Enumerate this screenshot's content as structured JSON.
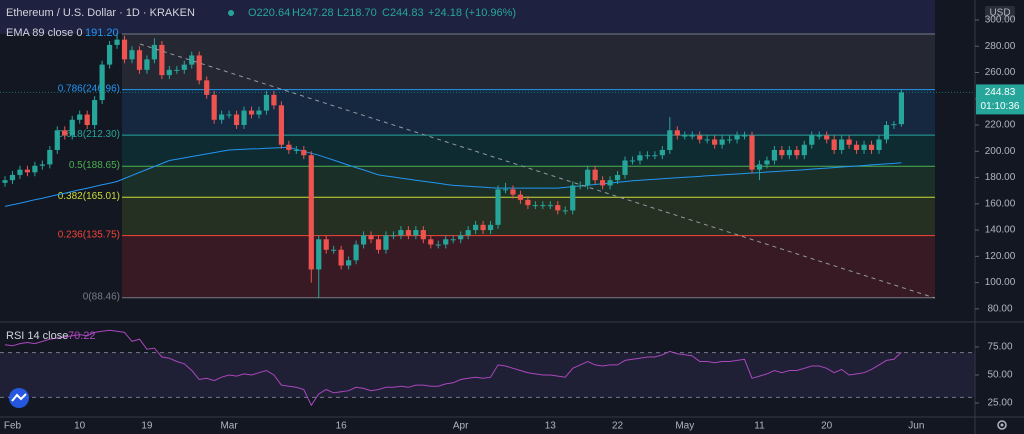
{
  "header": {
    "symbol": "Ethereum / U.S. Dollar · 1D · KRAKEN",
    "open": "O220.64",
    "high": "H247.28",
    "low": "L218.70",
    "close": "C244.83",
    "change": "+24.18 (+10.96%)",
    "currency": "USD",
    "countdown": "01:10:36"
  },
  "chart_data": [
    {
      "type": "candlestick",
      "up_color": "#26a69a",
      "down_color": "#ef5350",
      "categories": [
        null,
        "Feb",
        null,
        null,
        null,
        null,
        null,
        null,
        null,
        null,
        "10",
        null,
        null,
        null,
        null,
        null,
        null,
        null,
        null,
        "19",
        null,
        null,
        null,
        null,
        null,
        null,
        null,
        null,
        null,
        null,
        "Mar",
        null,
        null,
        null,
        null,
        null,
        null,
        null,
        null,
        null,
        null,
        null,
        null,
        null,
        null,
        "16",
        null,
        null,
        null,
        null,
        null,
        null,
        null,
        null,
        null,
        null,
        null,
        null,
        null,
        null,
        null,
        "Apr",
        null,
        null,
        null,
        null,
        null,
        null,
        null,
        null,
        null,
        null,
        null,
        "13",
        null,
        null,
        null,
        null,
        null,
        null,
        null,
        null,
        "22",
        null,
        null,
        null,
        null,
        null,
        null,
        null,
        null,
        "May",
        null,
        null,
        null,
        null,
        null,
        null,
        null,
        null,
        null,
        "11",
        null,
        null,
        null,
        null,
        null,
        null,
        null,
        null,
        "20",
        null,
        null,
        null,
        null,
        null,
        null,
        null,
        null,
        null,
        null,
        null,
        "Jun"
      ],
      "ohlc": [
        [
          176,
          181,
          173,
          178
        ],
        [
          178,
          185,
          175,
          182
        ],
        [
          182,
          189,
          179,
          186
        ],
        [
          186,
          189,
          181,
          184
        ],
        [
          184,
          192,
          181,
          189
        ],
        [
          189,
          193,
          186,
          190
        ],
        [
          190,
          204,
          187,
          201
        ],
        [
          201,
          219,
          198,
          216
        ],
        [
          216,
          219,
          209,
          212
        ],
        [
          212,
          227,
          209,
          224
        ],
        [
          224,
          231,
          221,
          228
        ],
        [
          228,
          231,
          217,
          220
        ],
        [
          220,
          242,
          217,
          239
        ],
        [
          239,
          269,
          236,
          266
        ],
        [
          266,
          284,
          263,
          281
        ],
        [
          281,
          290,
          278,
          285
        ],
        [
          285,
          288,
          267,
          270
        ],
        [
          270,
          280,
          267,
          277
        ],
        [
          277,
          280,
          259,
          262
        ],
        [
          262,
          273,
          259,
          270
        ],
        [
          270,
          286,
          267,
          281
        ],
        [
          281,
          284,
          255,
          258
        ],
        [
          258,
          265,
          255,
          262
        ],
        [
          262,
          265,
          259,
          262
        ],
        [
          262,
          269,
          259,
          266
        ],
        [
          266,
          276,
          263,
          273
        ],
        [
          273,
          276,
          251,
          254
        ],
        [
          254,
          257,
          240,
          243
        ],
        [
          243,
          246,
          221,
          224
        ],
        [
          224,
          231,
          221,
          228
        ],
        [
          228,
          231,
          225,
          228
        ],
        [
          228,
          231,
          217,
          220
        ],
        [
          220,
          234,
          217,
          231
        ],
        [
          231,
          234,
          225,
          228
        ],
        [
          228,
          234,
          225,
          231
        ],
        [
          231,
          246,
          228,
          243
        ],
        [
          243,
          246,
          232,
          235
        ],
        [
          235,
          238,
          202,
          205
        ],
        [
          205,
          208,
          198,
          201
        ],
        [
          201,
          204,
          198,
          201
        ],
        [
          201,
          204,
          194,
          197
        ],
        [
          197,
          200,
          100,
          110
        ],
        [
          110,
          136,
          88.46,
          133
        ],
        [
          133,
          136,
          122,
          125
        ],
        [
          125,
          128,
          122,
          125
        ],
        [
          125,
          128,
          110,
          113
        ],
        [
          113,
          120,
          110,
          117
        ],
        [
          117,
          132,
          114,
          129
        ],
        [
          129,
          139,
          126,
          136
        ],
        [
          136,
          139,
          130,
          133
        ],
        [
          133,
          136,
          122,
          125
        ],
        [
          125,
          139,
          122,
          136
        ],
        [
          136,
          139,
          133,
          136
        ],
        [
          136,
          143,
          133,
          140
        ],
        [
          140,
          143,
          133,
          136
        ],
        [
          136,
          143,
          133,
          140
        ],
        [
          140,
          143,
          130,
          133
        ],
        [
          133,
          136,
          126,
          129
        ],
        [
          129,
          132,
          126,
          129
        ],
        [
          129,
          136,
          126,
          133
        ],
        [
          133,
          136,
          130,
          133
        ],
        [
          133,
          139,
          130,
          136
        ],
        [
          136,
          143,
          133,
          140
        ],
        [
          140,
          147,
          137,
          144
        ],
        [
          144,
          147,
          137,
          140
        ],
        [
          140,
          147,
          137,
          144
        ],
        [
          144,
          174,
          141,
          171
        ],
        [
          171,
          176,
          168,
          171
        ],
        [
          171,
          174,
          164,
          167
        ],
        [
          167,
          170,
          160,
          163
        ],
        [
          163,
          166,
          156,
          159
        ],
        [
          159,
          162,
          156,
          159
        ],
        [
          159,
          162,
          156,
          159
        ],
        [
          159,
          162,
          156,
          159
        ],
        [
          159,
          162,
          152,
          155
        ],
        [
          155,
          158,
          152,
          155
        ],
        [
          155,
          177,
          152,
          174
        ],
        [
          174,
          177,
          171,
          174
        ],
        [
          174,
          189,
          171,
          186
        ],
        [
          186,
          189,
          175,
          178
        ],
        [
          178,
          181,
          171,
          174
        ],
        [
          174,
          181,
          171,
          178
        ],
        [
          178,
          185,
          175,
          182
        ],
        [
          182,
          196,
          179,
          193
        ],
        [
          193,
          196,
          190,
          193
        ],
        [
          193,
          200,
          190,
          197
        ],
        [
          197,
          200,
          194,
          197
        ],
        [
          197,
          200,
          194,
          197
        ],
        [
          197,
          204,
          194,
          201
        ],
        [
          201,
          226,
          198,
          216
        ],
        [
          216,
          219,
          209,
          212
        ],
        [
          212,
          215,
          209,
          212
        ],
        [
          212,
          215,
          209,
          212
        ],
        [
          212,
          215,
          206,
          209
        ],
        [
          209,
          212,
          206,
          209
        ],
        [
          209,
          212,
          202,
          205
        ],
        [
          205,
          212,
          202,
          209
        ],
        [
          209,
          212,
          206,
          209
        ],
        [
          209,
          215,
          206,
          212
        ],
        [
          212,
          215,
          209,
          212
        ],
        [
          212,
          215,
          183,
          186
        ],
        [
          186,
          193,
          178,
          190
        ],
        [
          190,
          196,
          187,
          193
        ],
        [
          193,
          204,
          190,
          201
        ],
        [
          201,
          204,
          194,
          197
        ],
        [
          197,
          204,
          194,
          201
        ],
        [
          201,
          204,
          194,
          197
        ],
        [
          197,
          208,
          194,
          205
        ],
        [
          205,
          215,
          202,
          212
        ],
        [
          212,
          215,
          209,
          212
        ],
        [
          212,
          215,
          206,
          209
        ],
        [
          209,
          212,
          198,
          201
        ],
        [
          201,
          212,
          198,
          209
        ],
        [
          209,
          212,
          202,
          205
        ],
        [
          205,
          208,
          198,
          201
        ],
        [
          201,
          208,
          198,
          205
        ],
        [
          205,
          208,
          198,
          201
        ],
        [
          201,
          212,
          198,
          209
        ],
        [
          209,
          223,
          206,
          220
        ],
        [
          220,
          223,
          217,
          220.64
        ],
        [
          220.64,
          247.28,
          218.7,
          244.83
        ],
        null,
        null
      ],
      "series": [
        {
          "name": "EMA 89 close 0",
          "color": "#2196f3",
          "value_label": "191.20",
          "values": [
            158,
            159.3,
            160.5,
            161.8,
            163.1,
            164.3,
            165.6,
            166.9,
            168.1,
            169.4,
            170.7,
            171.9,
            173.2,
            174.5,
            175.7,
            177,
            179.3,
            181.6,
            183.9,
            186.1,
            188.4,
            190.7,
            193,
            194,
            195,
            196,
            197,
            198,
            199,
            200,
            201,
            201.3,
            201.5,
            201.8,
            202,
            202.3,
            202.5,
            202.8,
            203,
            201.5,
            200,
            198.5,
            197,
            195.1,
            193.3,
            191.4,
            189.5,
            187.6,
            185.8,
            183.9,
            182,
            181.2,
            180.4,
            179.6,
            178.8,
            178,
            177.2,
            176.4,
            175.6,
            174.8,
            174,
            173.7,
            173.3,
            173,
            172.7,
            172.3,
            172,
            172,
            172,
            172,
            172,
            172,
            172,
            172,
            172,
            172.5,
            173.1,
            173.6,
            174.2,
            174.7,
            175.3,
            175.8,
            176.4,
            176.9,
            177.5,
            178,
            178.4,
            178.7,
            179.1,
            179.5,
            179.8,
            180.2,
            180.5,
            180.9,
            181.3,
            181.6,
            182,
            182.4,
            182.7,
            183.1,
            183.5,
            183.8,
            184.2,
            184.5,
            184.9,
            185.3,
            185.6,
            186,
            186.4,
            186.8,
            187.2,
            187.6,
            188,
            188.4,
            188.8,
            189.2,
            189.6,
            190,
            190.4,
            190.8,
            191.2,
            null,
            null
          ]
        }
      ],
      "fib_levels": [
        {
          "value": 289.3,
          "color": "#787b86",
          "fill": "rgba(120,123,134,0.18)"
        },
        {
          "label": "0.786(246.96)",
          "value": 246.96,
          "color": "#2196f3",
          "fill": "rgba(33,150,243,0.14)"
        },
        {
          "label": "0.618(212.30)",
          "value": 212.3,
          "color": "#26a69a",
          "fill": "rgba(0,150,136,0.16)"
        },
        {
          "label": "0.5(188.65)",
          "value": 188.65,
          "color": "#4caf50",
          "fill": "rgba(76,175,80,0.16)"
        },
        {
          "label": "0.382(165.01)",
          "value": 165.01,
          "color": "#cddc39",
          "fill": "rgba(110,150,40,0.2)"
        },
        {
          "label": "0.236(135.75)",
          "value": 135.75,
          "color": "#f44336",
          "fill": "rgba(200,40,40,0.2)"
        },
        {
          "label": "0(88.46)",
          "value": 88.46,
          "color": "#787b86"
        }
      ],
      "last_price": {
        "value": 244.83,
        "label": "244.83"
      },
      "ylim": [
        70,
        311.4
      ],
      "yticks": [
        {
          "value": 80,
          "label": "80.00"
        },
        {
          "value": 100,
          "label": "100.00"
        },
        {
          "value": 120,
          "label": "120.00"
        },
        {
          "value": 140,
          "label": "140.00"
        },
        {
          "value": 160,
          "label": "160.00"
        },
        {
          "value": 180,
          "label": "180.00"
        },
        {
          "value": 200,
          "label": "200.00"
        },
        {
          "value": 220,
          "label": "220.00"
        },
        {
          "value": 240,
          "label": "240.00"
        },
        {
          "value": 260,
          "label": "260.00"
        },
        {
          "value": 280,
          "label": "280.00"
        },
        {
          "value": 300,
          "label": "300.00"
        }
      ],
      "grid": false
    },
    {
      "type": "line",
      "series": [
        {
          "name": "RSI 14 close",
          "color": "#ab47bc",
          "value_label": "70.22",
          "values": [
            77,
            76,
            78,
            79,
            78,
            80,
            82,
            83,
            84,
            85,
            86,
            85,
            88,
            89,
            90,
            89,
            88,
            80,
            82,
            73,
            74,
            66,
            65,
            62,
            60,
            54,
            46,
            47,
            45,
            48,
            50,
            49,
            51,
            50,
            52,
            54,
            50,
            41,
            40,
            39,
            37,
            23,
            33,
            37,
            34,
            35,
            36,
            39,
            38,
            36,
            37,
            39,
            39,
            40,
            39,
            41,
            41,
            40,
            40,
            42,
            43,
            46,
            47,
            48,
            47,
            48,
            59,
            58,
            56,
            54,
            52,
            51,
            50,
            50,
            49,
            48,
            56,
            59,
            62,
            59,
            58,
            59,
            59,
            63,
            64,
            65,
            66,
            66,
            68,
            71,
            69,
            68,
            67,
            62,
            62,
            61,
            62,
            62,
            63,
            64,
            47,
            49,
            51,
            54,
            52,
            54,
            54,
            56,
            58,
            58,
            56,
            52,
            55,
            50,
            51,
            52,
            55,
            59,
            63,
            64,
            70.22,
            null,
            null
          ]
        }
      ],
      "bands": [
        30,
        70
      ],
      "band_color": "rgba(126,87,194,0.12)",
      "ylim": [
        12.5,
        94.6
      ],
      "yticks": [
        {
          "value": 25,
          "label": "25.00"
        },
        {
          "value": 50,
          "label": "50.00"
        },
        {
          "value": 75,
          "label": "75.00"
        }
      ]
    }
  ]
}
